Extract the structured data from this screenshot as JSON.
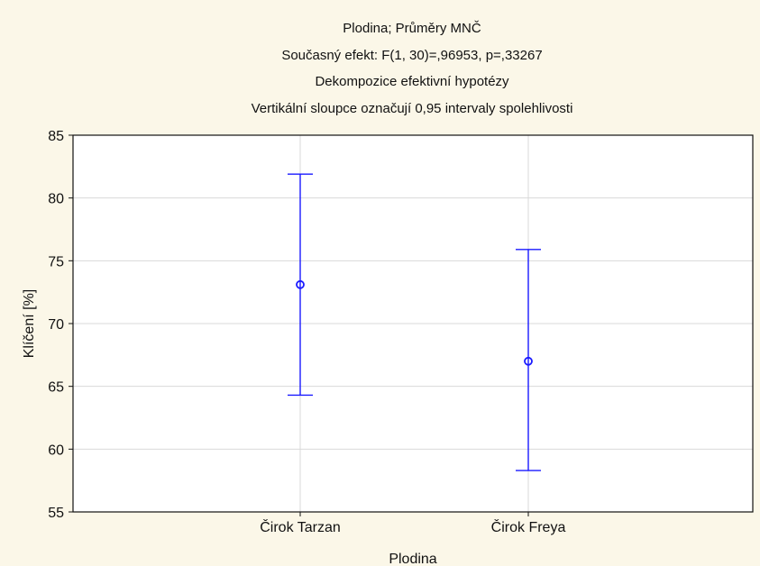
{
  "chart_data": {
    "type": "scatter",
    "title_lines": [
      "Plodina; Průměry MNČ",
      "Současný efekt: F(1, 30)=,96953, p=,33267",
      "Dekompozice efektivní hypotézy",
      "Vertikální sloupce označují 0,95 intervaly spolehlivosti"
    ],
    "xlabel": "Plodina",
    "ylabel": "Klíčení [%]",
    "categories": [
      "Čirok Tarzan",
      "Čirok Freya"
    ],
    "series": [
      {
        "values": [
          73.1,
          67.0
        ],
        "ci_lower": [
          64.3,
          58.3
        ],
        "ci_upper": [
          81.9,
          75.9
        ]
      }
    ],
    "ylim": [
      55,
      85
    ],
    "yticks": [
      "55",
      "60",
      "65",
      "70",
      "75",
      "80",
      "85"
    ],
    "grid": true,
    "colors": {
      "series": "#1a1aff",
      "background": "#fbf7e8",
      "plot_background": "#ffffff",
      "grid": "#d9d9d9"
    }
  }
}
